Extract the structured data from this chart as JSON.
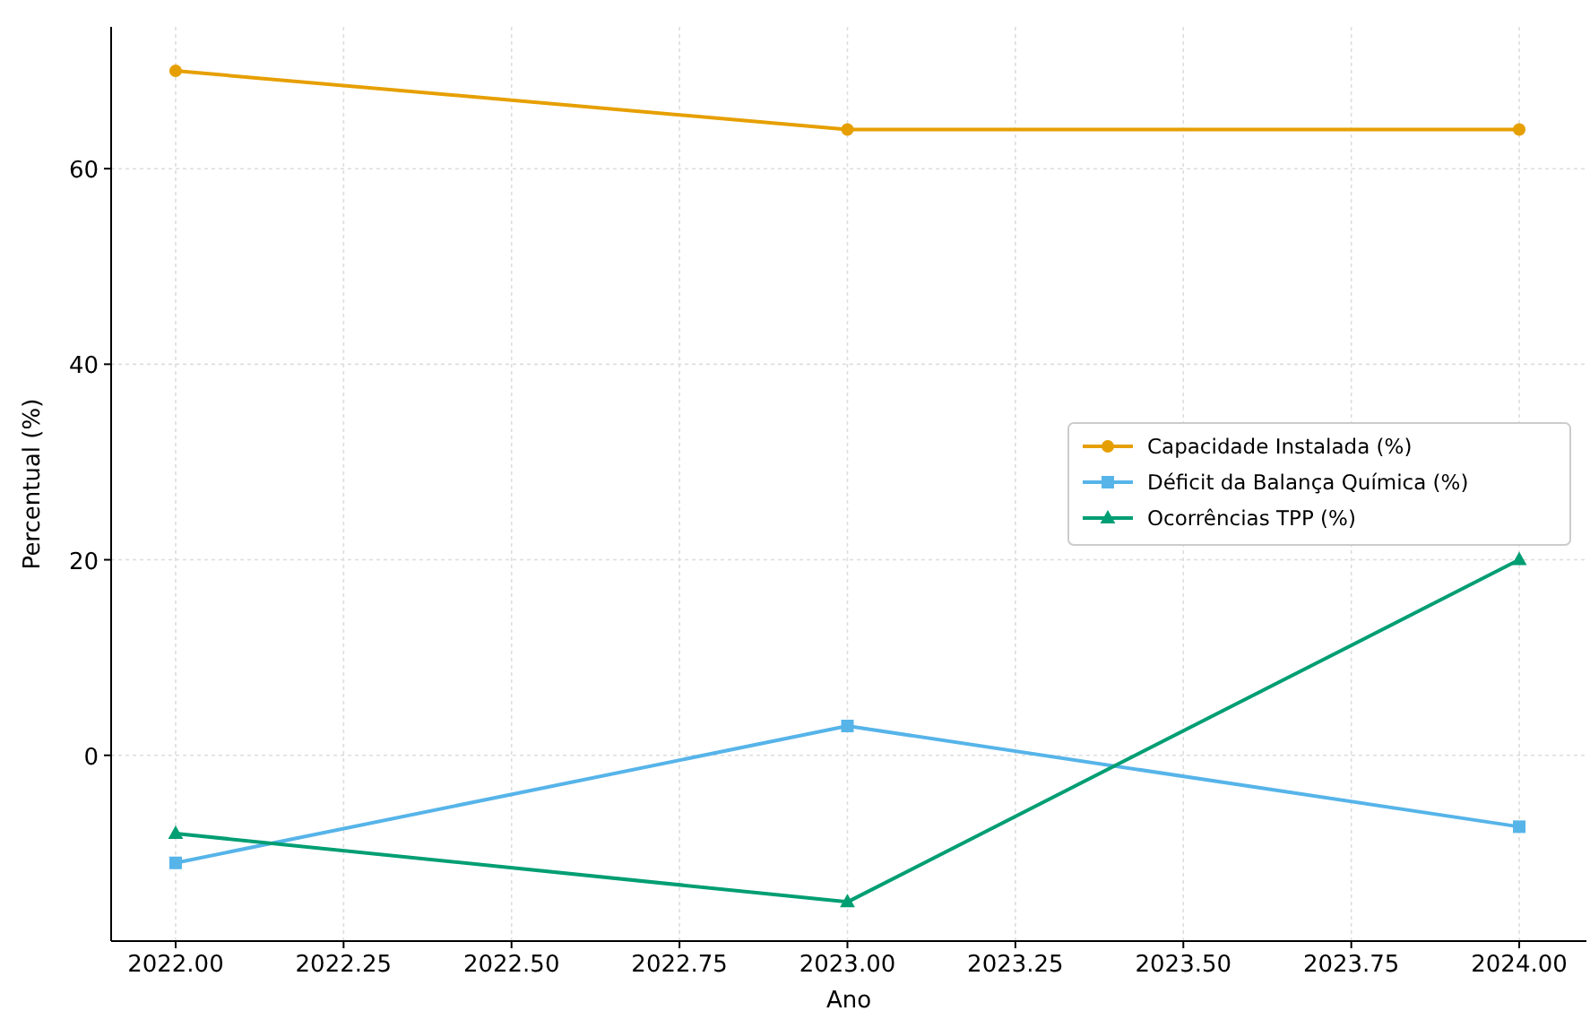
{
  "chart_data": {
    "type": "line",
    "xlabel": "Ano",
    "ylabel": "Percentual (%)",
    "x": [
      2022,
      2023,
      2024
    ],
    "xlim": [
      2021.904,
      2024.1
    ],
    "xticks": [
      {
        "value": 2022,
        "label": "2022.00"
      },
      {
        "value": 2022.25,
        "label": "2022.25"
      },
      {
        "value": 2022.5,
        "label": "2022.50"
      },
      {
        "value": 2022.75,
        "label": "2022.75"
      },
      {
        "value": 2023,
        "label": "2023.00"
      },
      {
        "value": 2023.25,
        "label": "2023.25"
      },
      {
        "value": 2023.5,
        "label": "2023.50"
      },
      {
        "value": 2023.75,
        "label": "2023.75"
      },
      {
        "value": 2024,
        "label": "2024.00"
      }
    ],
    "ylim": [
      -19,
      74.5
    ],
    "yticks": [
      0,
      20,
      40,
      60
    ],
    "grid": true,
    "legend": "right",
    "line_style": "solid",
    "series": [
      {
        "name": "Capacidade Instalada (%)",
        "color": "#e69f00",
        "marker": "circle",
        "values": [
          70,
          64,
          64
        ]
      },
      {
        "name": "Déficit da Balança Química (%)",
        "color": "#56b4e9",
        "marker": "square",
        "values": [
          -11,
          3,
          -7.3
        ]
      },
      {
        "name": "Ocorrências TPP (%)",
        "color": "#009e73",
        "marker": "triangle",
        "values": [
          -8,
          -15,
          20
        ]
      }
    ]
  }
}
